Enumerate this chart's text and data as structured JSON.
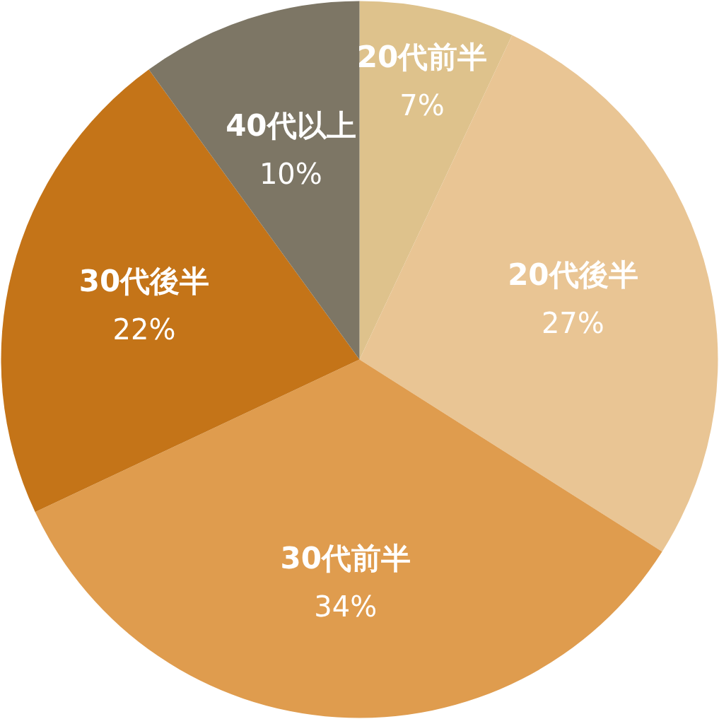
{
  "chart_data": {
    "type": "pie",
    "categories": [
      "20代前半",
      "20代後半",
      "30代前半",
      "30代後半",
      "40代以上"
    ],
    "values": [
      7,
      27,
      34,
      22,
      10
    ],
    "value_labels": [
      "7%",
      "27%",
      "34%",
      "22%",
      "10%"
    ],
    "colors": [
      "#dec28c",
      "#e9c594",
      "#df9c4e",
      "#c47418",
      "#7d7665"
    ]
  }
}
